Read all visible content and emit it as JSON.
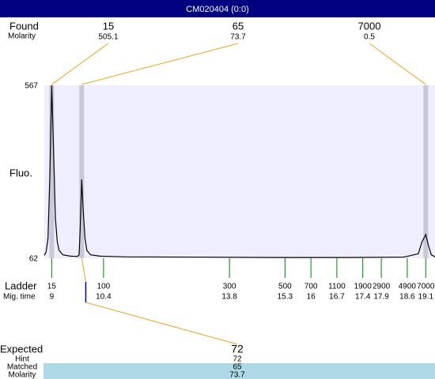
{
  "chart_data": {
    "type": "line",
    "title": "CM020404 (0:0)",
    "y_label": "Fluo.",
    "ylim": [
      62,
      567
    ],
    "yticks": [
      62,
      567
    ],
    "xlim": [
      8.8,
      19.35
    ],
    "series": [
      {
        "color": "#000000",
        "x": [
          8.8,
          8.85,
          8.9,
          8.95,
          9.0,
          9.05,
          9.1,
          9.15,
          9.2,
          9.3,
          9.5,
          9.7,
          9.74,
          9.77,
          9.81,
          9.85,
          9.9,
          9.95,
          10.05,
          10.3,
          11,
          13,
          15,
          17,
          18.5,
          18.9,
          19.0,
          19.1,
          19.17,
          19.25,
          19.35
        ],
        "values": [
          70,
          80,
          120,
          300,
          567,
          380,
          180,
          110,
          85,
          72,
          68,
          67,
          72,
          150,
          292,
          200,
          120,
          85,
          72,
          68,
          66,
          65,
          64,
          64,
          65,
          75,
          110,
          131,
          100,
          72,
          66
        ]
      }
    ],
    "found": {
      "label": "Found",
      "sublabel": "Molarity",
      "peaks": [
        {
          "size": 15,
          "molarity": 505.1,
          "time": 9.0
        },
        {
          "size": 65,
          "molarity": 73.7,
          "time": 9.81
        },
        {
          "size": 7000,
          "molarity": 0.5,
          "time": 19.1
        }
      ]
    },
    "ladder": {
      "label": "Ladder",
      "sublabel": "Mig. time",
      "sizes": [
        15,
        100,
        300,
        500,
        700,
        1100,
        1900,
        2900,
        4900,
        7000
      ],
      "times": [
        9,
        10.4,
        13.8,
        15.3,
        16,
        16.7,
        17.4,
        17.9,
        18.6,
        19.1
      ]
    },
    "expected": {
      "time": 9.92,
      "rows": [
        {
          "label": "Expected",
          "value": 72
        },
        {
          "label": "Hint",
          "value": 72
        },
        {
          "label": "Matched",
          "value": 65
        },
        {
          "label": "Molarity",
          "value": 73.7
        }
      ]
    }
  }
}
